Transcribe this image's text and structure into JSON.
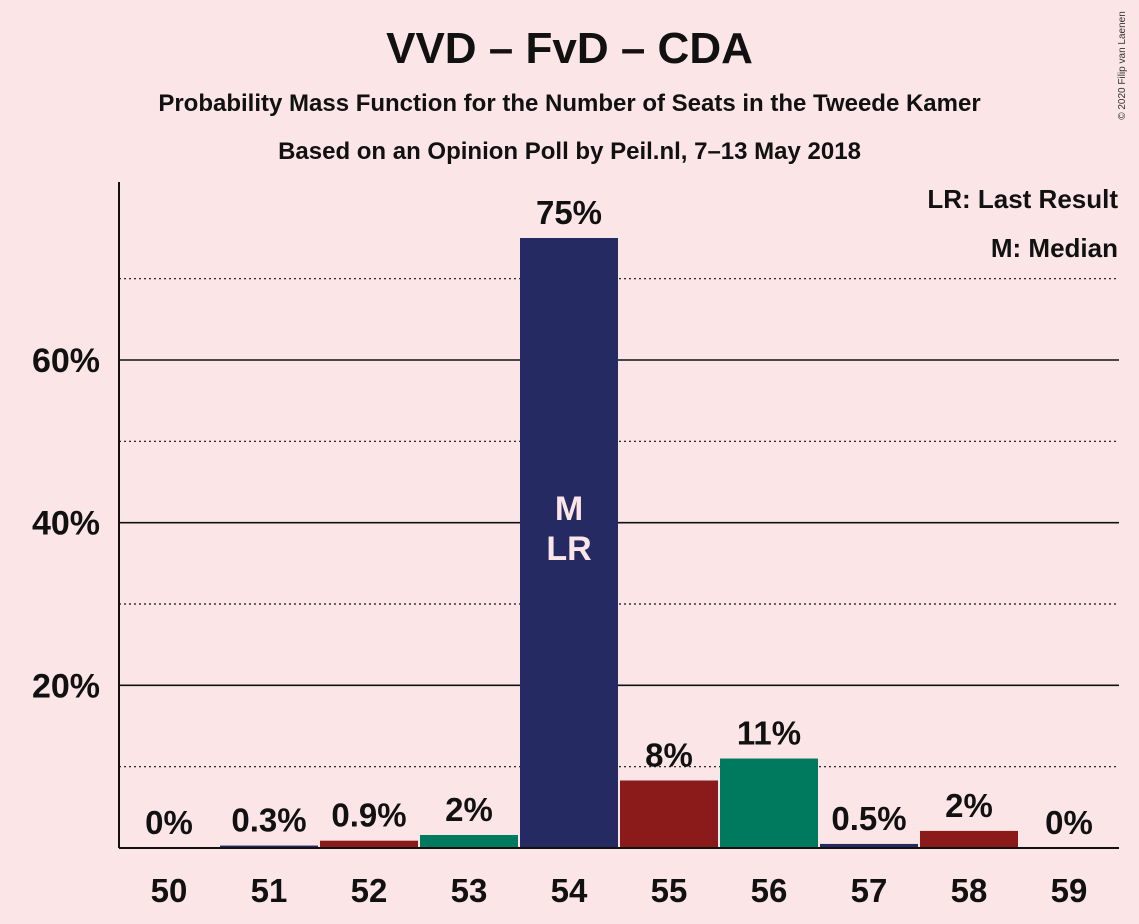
{
  "chart_data": {
    "type": "bar",
    "title": "VVD – FvD – CDA",
    "subtitle": "Probability Mass Function for the Number of Seats in the Tweede Kamer",
    "subtitle2": "Based on an Opinion Poll by Peil.nl, 7–13 May 2018",
    "categories": [
      "50",
      "51",
      "52",
      "53",
      "54",
      "55",
      "56",
      "57",
      "58",
      "59"
    ],
    "values": [
      0,
      0.3,
      0.9,
      1.6,
      75,
      8.3,
      11,
      0.5,
      2.1,
      0
    ],
    "value_labels": [
      "0%",
      "0.3%",
      "0.9%",
      "2%",
      "75%",
      "8%",
      "11%",
      "0.5%",
      "2%",
      "0%"
    ],
    "bar_colors": [
      "#8b1a1a",
      "#252a63",
      "#8b1a1a",
      "#007a5e",
      "#252a63",
      "#8b1a1a",
      "#007a5e",
      "#252a63",
      "#8b1a1a",
      "#007a5e"
    ],
    "ylim": [
      0,
      80
    ],
    "yticks_major": [
      20,
      40,
      60
    ],
    "ytick_labels": [
      "20%",
      "40%",
      "60%"
    ],
    "yticks_minor": [
      10,
      30,
      50,
      70
    ],
    "grid": true,
    "in_bar_marks": {
      "category": "54",
      "lines": [
        "M",
        "LR"
      ]
    },
    "legend": {
      "position": "top-right",
      "entries": [
        "LR: Last Result",
        "M: Median"
      ]
    },
    "copyright": "© 2020 Filip van Laenen"
  },
  "colors": {
    "background": "#fbe5e7",
    "gridline": "#111111",
    "in_bar_text": "#fbe5e7"
  }
}
